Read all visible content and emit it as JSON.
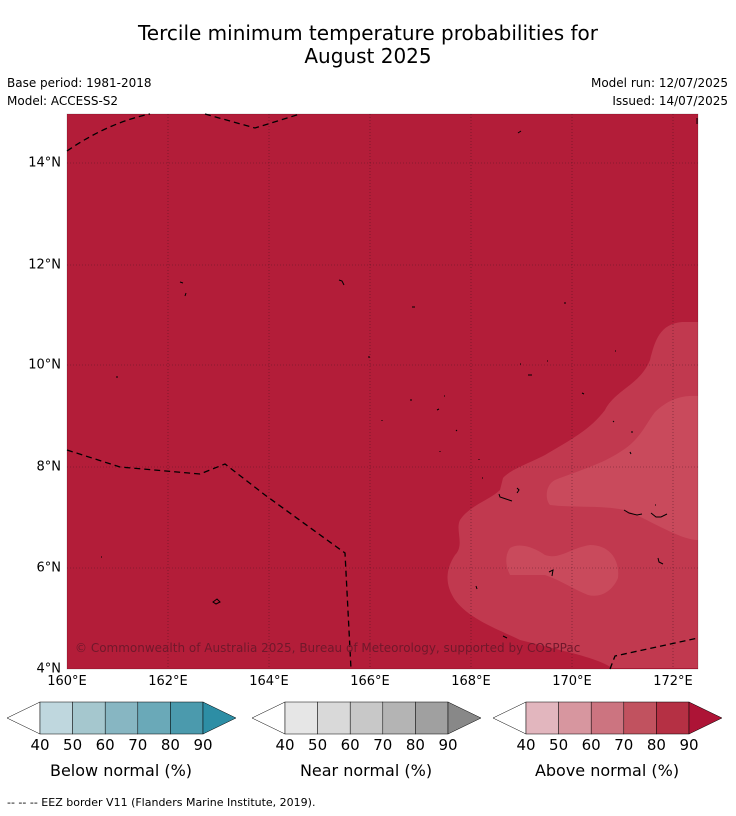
{
  "title_line1": "Tercile minimum temperature probabilities for",
  "title_line2": "August 2025",
  "meta": {
    "base_period": "Base period: 1981-2018",
    "model": "Model: ACCESS-S2",
    "model_run": "Model run: 12/07/2025",
    "issued": "Issued: 14/07/2025"
  },
  "map": {
    "lat_labels": [
      "14°N",
      "12°N",
      "10°N",
      "8°N",
      "6°N",
      "4°N"
    ],
    "lon_labels": [
      "160°E",
      "162°E",
      "164°E",
      "166°E",
      "168°E",
      "170°E",
      "172°E"
    ],
    "credit": "© Commonwealth of Australia 2025, Bureau of Meteorology, supported by COSPPac",
    "fill_category": "Above normal",
    "dominant_probability_bin": "80-90",
    "secondary_probability_bin": "70-80",
    "colors": {
      "ocean_above_80": "#b31d39",
      "above_70": "#c1394f",
      "above_60": "#cb5463",
      "grid": "#4a1420",
      "border": "#000000"
    }
  },
  "colorbars": [
    {
      "label": "Below normal (%)",
      "ticks": [
        "40",
        "50",
        "60",
        "70",
        "80",
        "90"
      ],
      "colors": [
        "#ffffff",
        "#bfd7de",
        "#a5c7ce",
        "#87b6c2",
        "#6aa9b8",
        "#4b9aad",
        "#2d8ea5"
      ]
    },
    {
      "label": "Near normal (%)",
      "ticks": [
        "40",
        "50",
        "60",
        "70",
        "80",
        "90"
      ],
      "colors": [
        "#ffffff",
        "#e6e6e6",
        "#d9d9d9",
        "#c8c8c8",
        "#b4b4b4",
        "#a0a0a0",
        "#888888"
      ]
    },
    {
      "label": "Above normal (%)",
      "ticks": [
        "40",
        "50",
        "60",
        "70",
        "80",
        "90"
      ],
      "colors": [
        "#ffffff",
        "#e2b6be",
        "#d7969f",
        "#cc7480",
        "#c1525f",
        "#b53044",
        "#ad1436"
      ]
    }
  ],
  "footnote": "--  --  -- EEZ border V11 (Flanders Marine Institute, 2019)."
}
